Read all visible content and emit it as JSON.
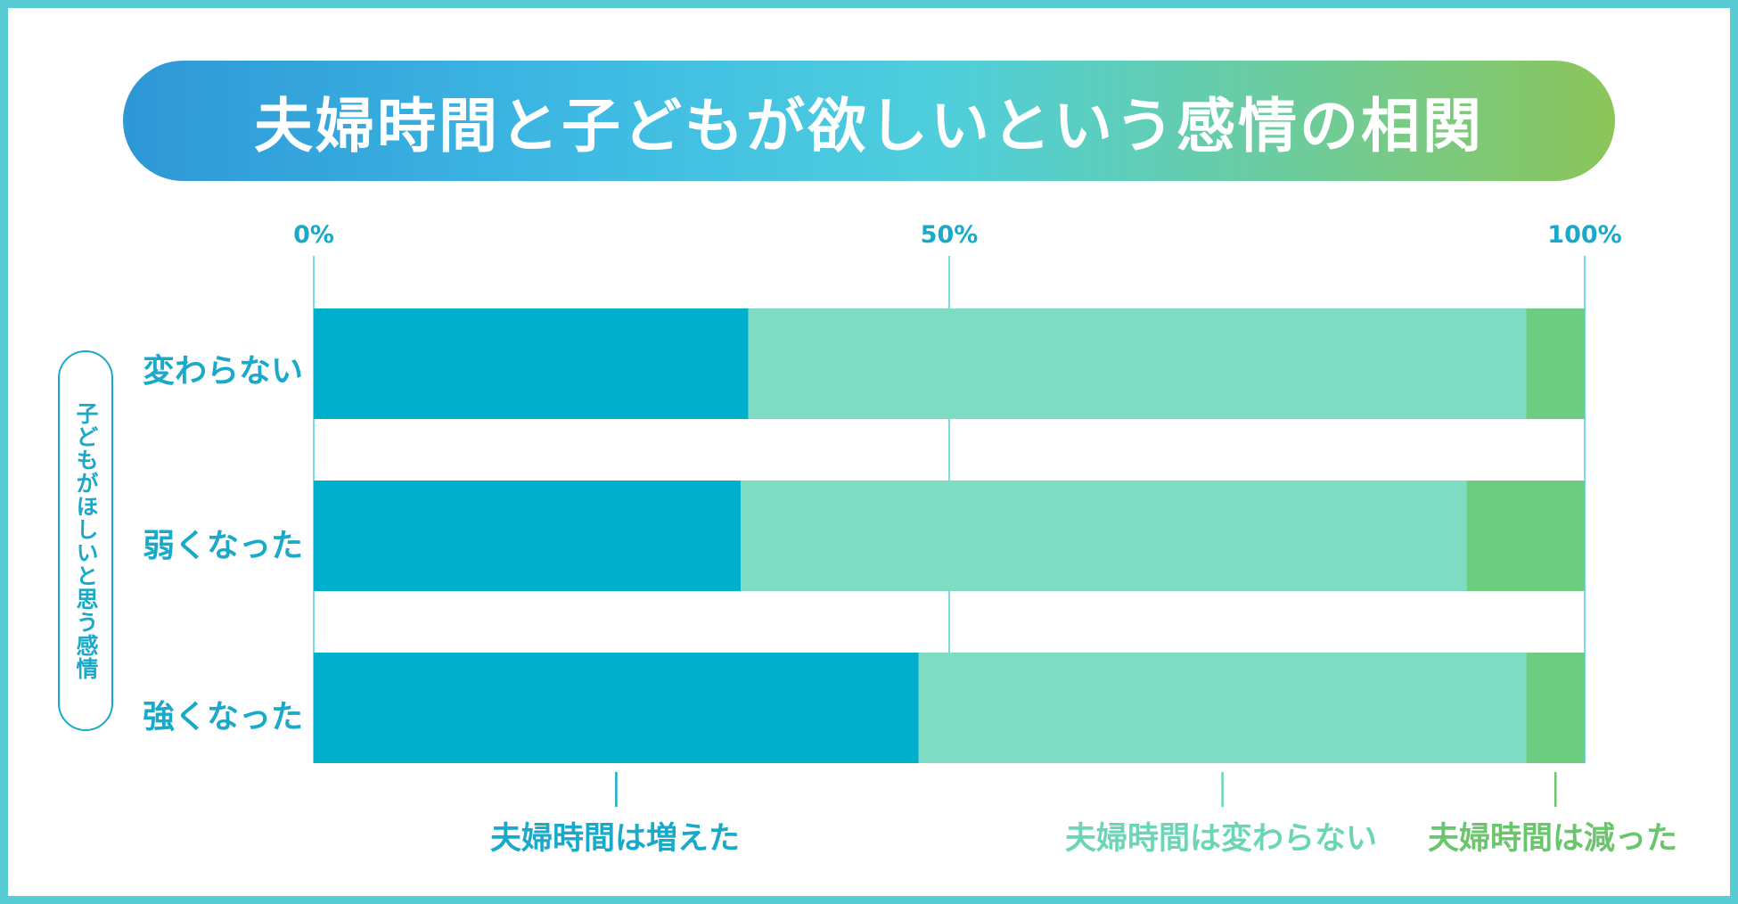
{
  "title": "夫婦時間と子どもが欲しいという感情の相関",
  "colors": {
    "frame": "#57cdd3",
    "series_increased": "#00afcc",
    "series_unchanged": "#7edcc2",
    "series_decreased": "#6ccc80",
    "label_blue": "#1aa9c9",
    "label_teal": "#6ad6b6",
    "label_green": "#6bc56d",
    "axis_line": "#4fcfe0"
  },
  "chart_data": {
    "type": "bar",
    "orientation": "horizontal",
    "stacked": true,
    "y_axis_label": "子どもがほしいと思う感情",
    "x_ticks": [
      "0%",
      "50%",
      "100%"
    ],
    "xlim": [
      0,
      100
    ],
    "categories": [
      "変わらない",
      "弱くなった",
      "強くなった"
    ],
    "series": [
      {
        "name": "夫婦時間は増えた",
        "values": [
          34.2,
          33.6,
          47.6
        ]
      },
      {
        "name": "夫婦時間は変わらない",
        "values": [
          61.2,
          57.1,
          47.8
        ]
      },
      {
        "name": "夫婦時間は減った",
        "values": [
          4.6,
          9.3,
          4.6
        ]
      }
    ],
    "grid": true,
    "legend_placement": "bottom"
  }
}
